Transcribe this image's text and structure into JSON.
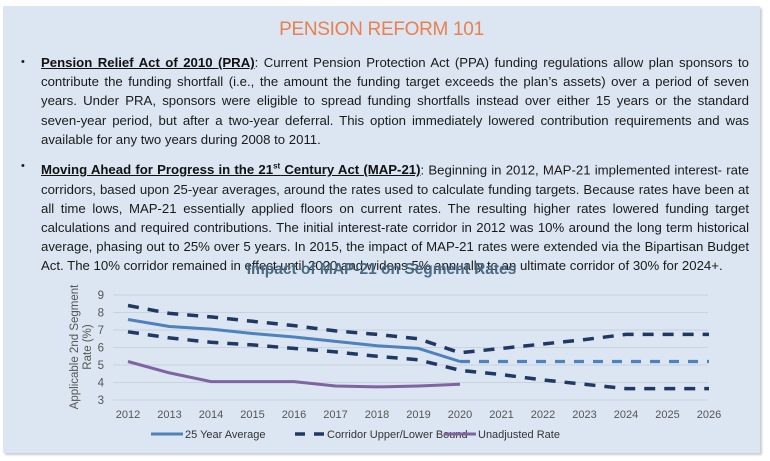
{
  "header": {
    "title": "PENSION REFORM 101"
  },
  "bullets": [
    {
      "heading": "Pension Relief Act of 2010 (PRA)",
      "text": ": Current Pension Protection Act (PPA) funding regulations allow plan sponsors to contribute the funding shortfall (i.e., the amount the funding target exceeds the plan’s assets) over a period of seven years. Under PRA, sponsors were eligible to spread funding shortfalls instead over either 15 years or the standard seven-year period, but after a two-year deferral. This option immediately lowered contribution requirements and was available for any two years during 2008 to 2011."
    },
    {
      "heading_pre": "Moving Ahead for Progress in the 21",
      "heading_sup": "st",
      "heading_post": " Century Act (MAP-21)",
      "text": ":  Beginning in 2012, MAP-21 implemented interest- rate corridors, based upon 25-year averages, around the rates used to calculate funding targets. Because rates have been at all time lows, MAP-21 essentially applied floors on current rates. The resulting higher rates lowered funding target calculations and required contributions. The initial interest-rate corridor in 2012 was 10% around the long term historical average, phasing out to 25% over 5 years. In 2015, the impact of MAP-21 rates were extended via the Bipartisan Budget Act. The 10% corridor remained in effect until 2020 and widens 5% annually to an ultimate corridor of 30% for 2024+."
    }
  ],
  "chart_data": {
    "type": "line",
    "title": "Impact of MAP-21 on Segment Rates",
    "xlabel": "",
    "ylabel": "Applicable 2nd Segment Rate (%)",
    "ylim": [
      3,
      9
    ],
    "yticks": [
      "3",
      "4",
      "5",
      "6",
      "7",
      "8",
      "9"
    ],
    "grid": true,
    "legend": "bottom",
    "x": [
      "2012",
      "2013",
      "2014",
      "2015",
      "2016",
      "2017",
      "2018",
      "2019",
      "2020",
      "2021",
      "2022",
      "2023",
      "2024",
      "2025",
      "2026"
    ],
    "series": [
      {
        "name": "25 Year Average",
        "color": "#4f81bd",
        "style": "solid-then-dashed",
        "values": [
          7.6,
          7.2,
          7.05,
          6.8,
          6.6,
          6.35,
          6.1,
          5.95,
          5.2,
          5.2,
          5.2,
          5.2,
          5.2,
          5.2,
          5.2
        ]
      },
      {
        "name": "Corridor Upper Bound",
        "legend_name": "Corridor Upper/Lower Bound",
        "color": "#1f3864",
        "style": "dashed",
        "values": [
          8.4,
          7.95,
          7.75,
          7.5,
          7.25,
          6.95,
          6.75,
          6.5,
          5.7,
          5.95,
          6.2,
          6.45,
          6.75,
          6.75,
          6.75
        ]
      },
      {
        "name": "Corridor Lower Bound",
        "color": "#1f3864",
        "style": "dashed",
        "values": [
          6.9,
          6.55,
          6.3,
          6.15,
          5.95,
          5.75,
          5.5,
          5.3,
          4.7,
          4.45,
          4.15,
          3.9,
          3.65,
          3.65,
          3.65
        ]
      },
      {
        "name": "Unadjusted Rate",
        "color": "#8064a2",
        "style": "solid",
        "values": [
          5.2,
          4.55,
          4.05,
          4.05,
          4.05,
          3.8,
          3.75,
          3.8,
          3.9,
          null,
          null,
          null,
          null,
          null,
          null
        ]
      }
    ],
    "legend_entries": [
      {
        "label": "25 Year Average",
        "color": "#4f81bd",
        "style": "solid"
      },
      {
        "label": "Corridor Upper/Lower Bound",
        "color": "#1f3864",
        "style": "dashed"
      },
      {
        "label": "Unadjusted Rate",
        "color": "#8064a2",
        "style": "solid"
      }
    ]
  },
  "colors": {
    "panel_bg": "#dce6f2",
    "title": "#e8804f",
    "chart_title": "#4a6b82"
  }
}
